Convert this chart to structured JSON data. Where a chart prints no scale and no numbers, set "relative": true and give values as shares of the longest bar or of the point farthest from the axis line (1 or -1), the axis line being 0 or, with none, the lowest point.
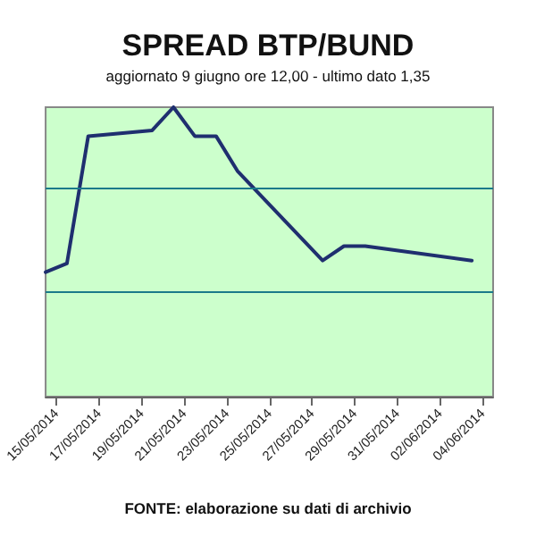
{
  "chart_data": {
    "type": "line",
    "title": "SPREAD BTP/BUND",
    "subtitle": "aggiornato 9 giugno ore 12,00 - ultimo dato 1,35",
    "relative": true,
    "x": [
      "2014-05-14T12:00",
      "2014-05-15T12:00",
      "2014-05-16T12:00",
      "2014-05-19T12:00",
      "2014-05-20T12:00",
      "2014-05-21T12:00",
      "2014-05-22T12:00",
      "2014-05-23T12:00",
      "2014-05-27T12:00",
      "2014-05-28T12:00",
      "2014-05-29T12:00",
      "2014-05-30T12:00",
      "2014-06-03T12:00"
    ],
    "series": [
      {
        "color": "#1f2f6f",
        "values": [
          0.43,
          0.46,
          0.9,
          0.92,
          1,
          0.9,
          0.9,
          0.78,
          0.47,
          0.52,
          0.52,
          0.51,
          0.47
        ]
      }
    ],
    "xlim": [
      "2014-05-14T12:00",
      "2014-06-04T12:00"
    ],
    "xticks": [
      {
        "value": "2014-05-15",
        "label": "15/05/2014"
      },
      {
        "value": "2014-05-17",
        "label": "17/05/2014"
      },
      {
        "value": "2014-05-19",
        "label": "19/05/2014"
      },
      {
        "value": "2014-05-21",
        "label": "21/05/2014"
      },
      {
        "value": "2014-05-23",
        "label": "23/05/2014"
      },
      {
        "value": "2014-05-25",
        "label": "25/05/2014"
      },
      {
        "value": "2014-05-27",
        "label": "27/05/2014"
      },
      {
        "value": "2014-05-29",
        "label": "29/05/2014"
      },
      {
        "value": "2014-05-31",
        "label": "31/05/2014"
      },
      {
        "value": "2014-06-02",
        "label": "02/06/2014"
      },
      {
        "value": "2014-06-04",
        "label": "04/06/2014"
      }
    ],
    "ref_lines": [
      {
        "axis": "y",
        "value": 0.725,
        "color": "#1a7a8a"
      },
      {
        "axis": "y",
        "value": 0.3625,
        "color": "#1a7a8a"
      }
    ],
    "annotations": [
      "FONTE: elaborazione su dati di archivio"
    ],
    "marker": "none",
    "line_style": "solid"
  }
}
